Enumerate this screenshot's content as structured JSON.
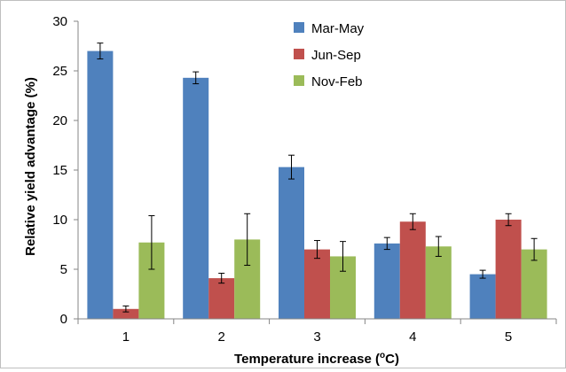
{
  "chart_data": {
    "type": "bar",
    "title": "",
    "xlabel": "Temperature increase (°C)",
    "xlabel_main": "Temperature increase (",
    "xlabel_degree": "o",
    "xlabel_tail": "C)",
    "ylabel": "Relative yield advantage (%)",
    "categories": [
      "1",
      "2",
      "3",
      "4",
      "5"
    ],
    "ylim": [
      0,
      30
    ],
    "yticks": [
      "0",
      "5",
      "10",
      "15",
      "20",
      "25",
      "30"
    ],
    "grid": false,
    "legend_position": "top-center",
    "series": [
      {
        "name": "Mar-May",
        "color": "#4f81bd",
        "values": [
          27.0,
          24.3,
          15.3,
          7.6,
          4.5
        ],
        "errors": [
          0.8,
          0.6,
          1.2,
          0.6,
          0.4
        ]
      },
      {
        "name": "Jun-Sep",
        "color": "#c0504d",
        "values": [
          1.0,
          4.1,
          7.0,
          9.8,
          10.0
        ],
        "errors": [
          0.3,
          0.5,
          0.9,
          0.8,
          0.6
        ]
      },
      {
        "name": "Nov-Feb",
        "color": "#9bbb59",
        "values": [
          7.7,
          8.0,
          6.3,
          7.3,
          7.0
        ],
        "errors": [
          2.7,
          2.6,
          1.5,
          1.0,
          1.1
        ]
      }
    ]
  }
}
